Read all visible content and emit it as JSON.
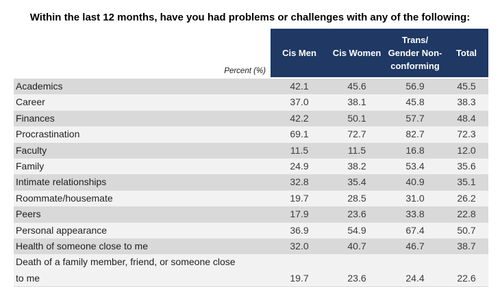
{
  "title": "Within the last 12 months, have you had problems or challenges with any of the following:",
  "table": {
    "corner_label": "Percent (%)",
    "header": {
      "col1": "Cis Men",
      "col2": "Cis Women",
      "col3_lines": [
        "Trans/",
        "Gender Non-",
        "conforming"
      ],
      "col4": "Total"
    },
    "rows": [
      {
        "label": "Academics",
        "values": [
          "42.1",
          "45.6",
          "56.9",
          "45.5"
        ]
      },
      {
        "label": "Career",
        "values": [
          "37.0",
          "38.1",
          "45.8",
          "38.3"
        ]
      },
      {
        "label": "Finances",
        "values": [
          "42.2",
          "50.1",
          "57.7",
          "48.4"
        ]
      },
      {
        "label": "Procrastination",
        "values": [
          "69.1",
          "72.7",
          "82.7",
          "72.3"
        ]
      },
      {
        "label": "Faculty",
        "values": [
          "11.5",
          "11.5",
          "16.8",
          "12.0"
        ]
      },
      {
        "label": "Family",
        "values": [
          "24.9",
          "38.2",
          "53.4",
          "35.6"
        ]
      },
      {
        "label": "Intimate relationships",
        "values": [
          "32.8",
          "35.4",
          "40.9",
          "35.1"
        ]
      },
      {
        "label": "Roommate/housemate",
        "values": [
          "19.7",
          "28.5",
          "31.0",
          "26.2"
        ]
      },
      {
        "label": "Peers",
        "values": [
          "17.9",
          "23.6",
          "33.8",
          "22.8"
        ]
      },
      {
        "label": "Personal appearance",
        "values": [
          "36.9",
          "54.9",
          "67.4",
          "50.7"
        ]
      },
      {
        "label": "Health of someone close to me",
        "values": [
          "32.0",
          "40.7",
          "46.7",
          "38.7"
        ]
      },
      {
        "label": "Death of a family member, friend, or someone close\nto me",
        "values": [
          "19.7",
          "23.6",
          "24.4",
          "22.6"
        ]
      }
    ],
    "colors": {
      "header_bg": "#1F3864",
      "header_text": "#FFFFFF",
      "stripe_dark": "#D9D9D9",
      "stripe_light": "#F2F2F2",
      "title_text": "#000000",
      "body_text": "#1F1F1F",
      "value_text": "#3A3A3A"
    }
  },
  "chart_data": {
    "type": "table",
    "title": "Within the last 12 months, have you had problems or challenges with any of the following:",
    "unit_label": "Percent (%)",
    "categories": [
      "Academics",
      "Career",
      "Finances",
      "Procrastination",
      "Faculty",
      "Family",
      "Intimate relationships",
      "Roommate/housemate",
      "Peers",
      "Personal appearance",
      "Health of someone close to me",
      "Death of a family member, friend, or someone close to me"
    ],
    "series": [
      {
        "name": "Cis Men",
        "values": [
          42.1,
          37.0,
          42.2,
          69.1,
          11.5,
          24.9,
          32.8,
          19.7,
          17.9,
          36.9,
          32.0,
          19.7
        ]
      },
      {
        "name": "Cis Women",
        "values": [
          45.6,
          38.1,
          50.1,
          72.7,
          11.5,
          38.2,
          35.4,
          28.5,
          23.6,
          54.9,
          40.7,
          23.6
        ]
      },
      {
        "name": "Trans/Gender Non-conforming",
        "values": [
          56.9,
          45.8,
          57.7,
          82.7,
          16.8,
          53.4,
          40.9,
          31.0,
          33.8,
          67.4,
          46.7,
          24.4
        ]
      },
      {
        "name": "Total",
        "values": [
          45.5,
          38.3,
          48.4,
          72.3,
          12.0,
          35.6,
          35.1,
          26.2,
          22.8,
          50.7,
          38.7,
          22.6
        ]
      }
    ]
  }
}
